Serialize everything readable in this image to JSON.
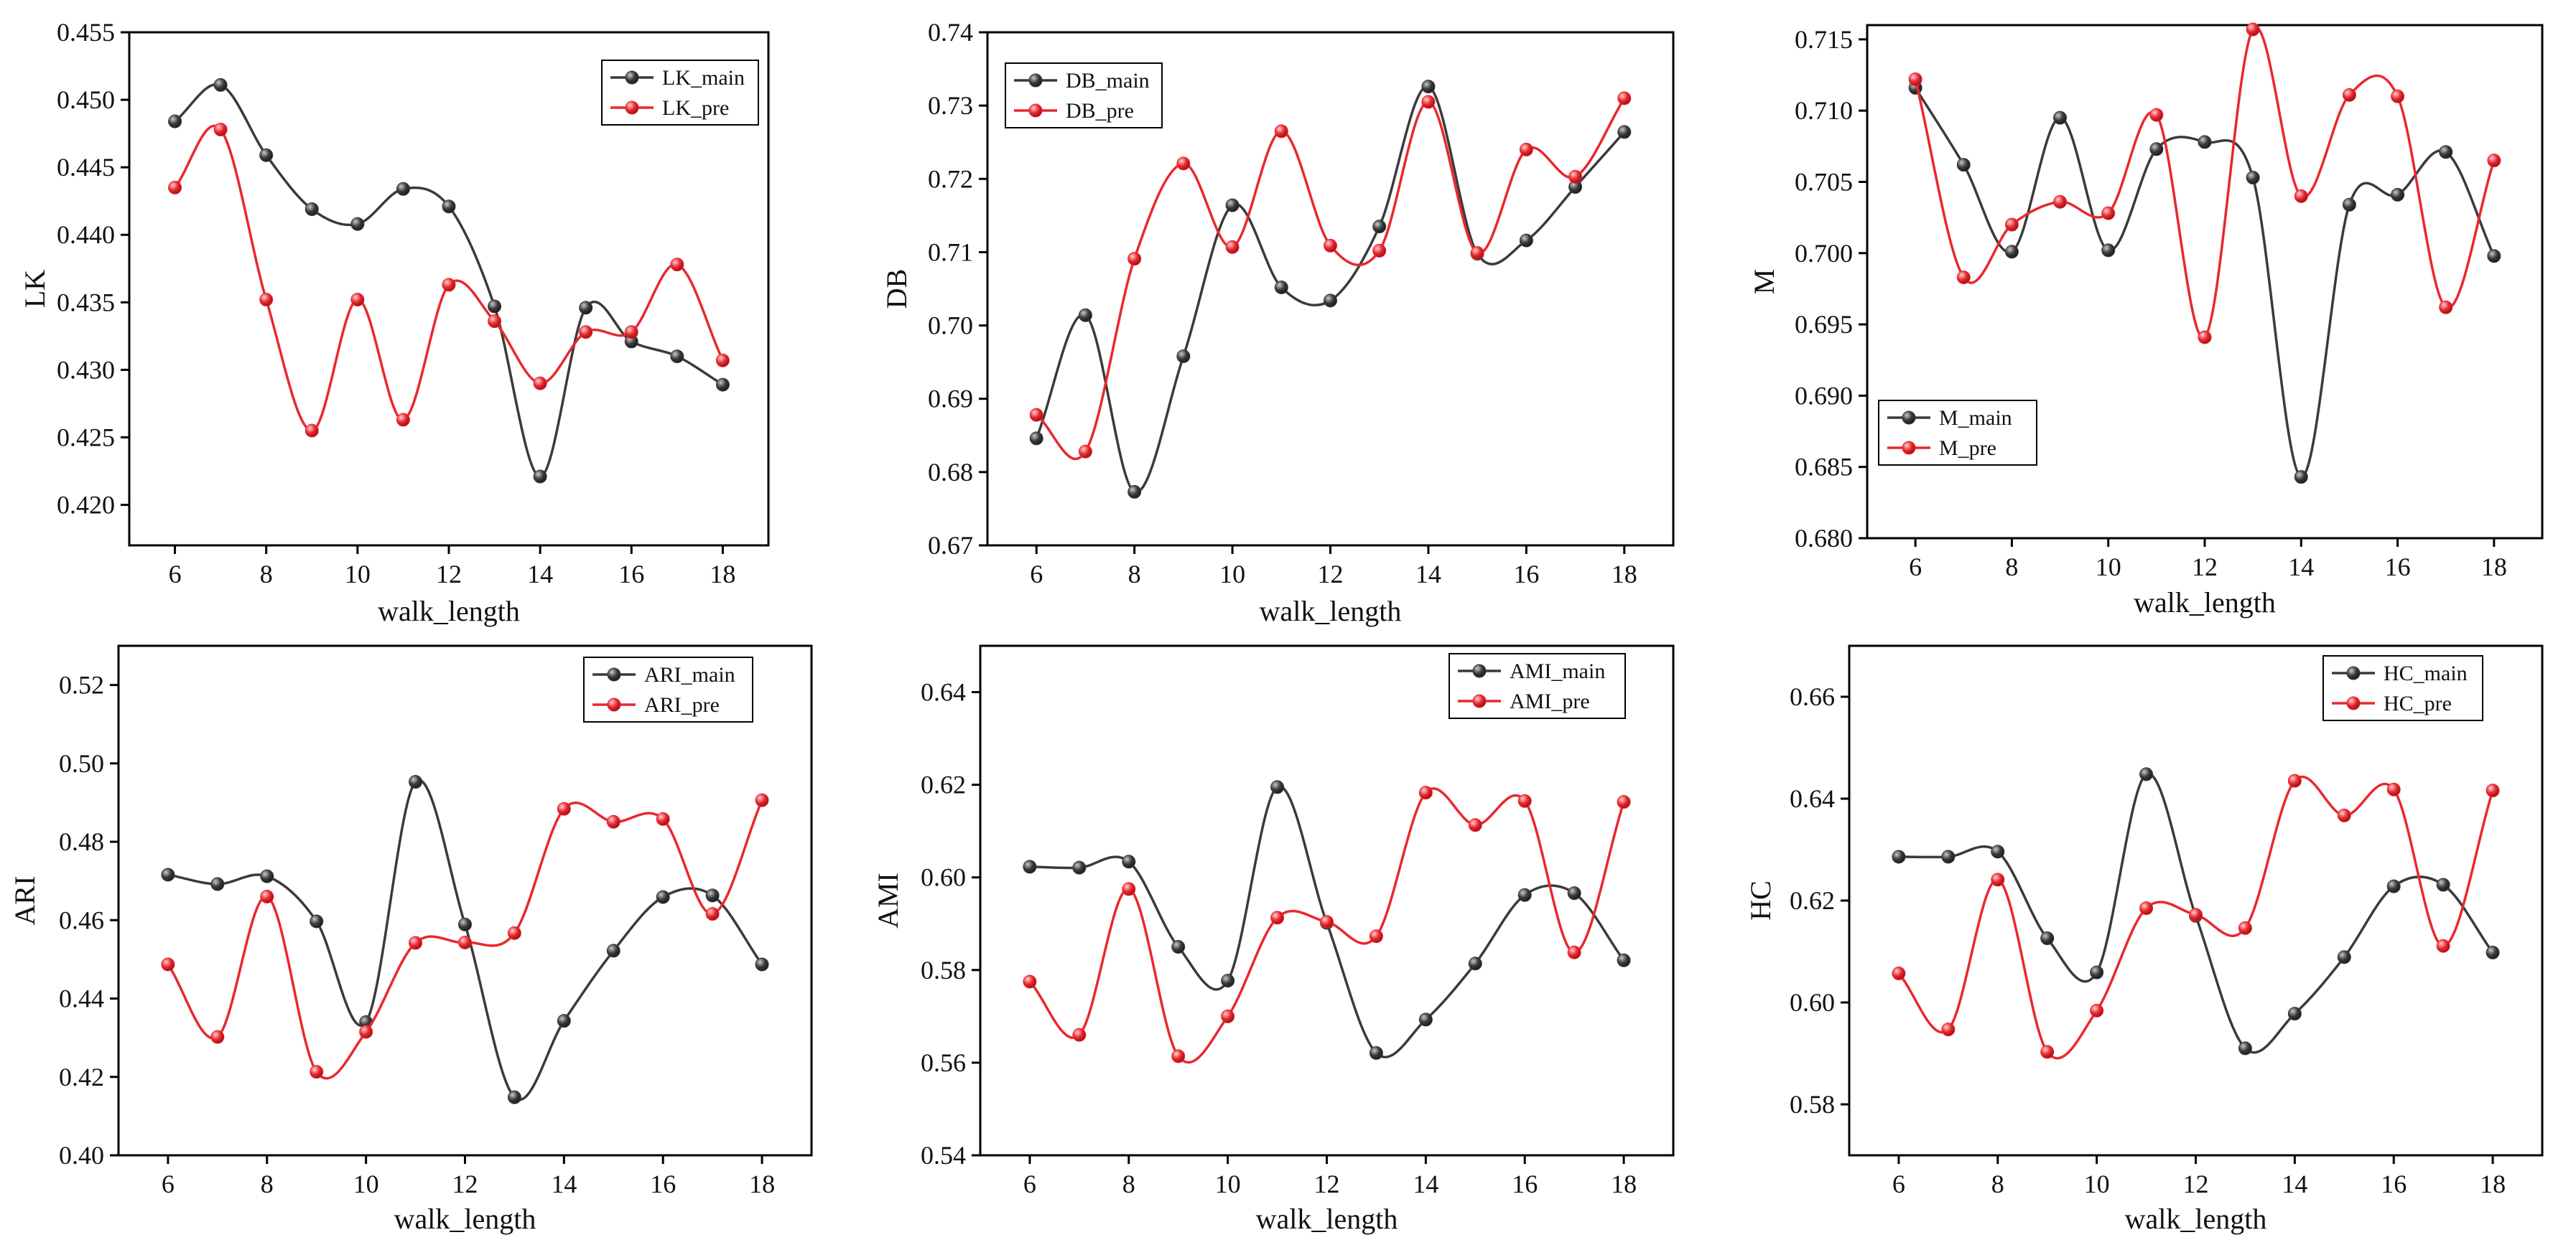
{
  "colors": {
    "main": "#3a3a3a",
    "pre": "#e8282e",
    "axis": "#000000"
  },
  "chart_data": [
    {
      "type": "line",
      "xlabel": "walk_length",
      "ylabel": "LK",
      "x": [
        6,
        7,
        8,
        9,
        10,
        11,
        12,
        13,
        14,
        15,
        16,
        17,
        18
      ],
      "xticks": [
        6,
        8,
        10,
        12,
        14,
        16,
        18
      ],
      "xlim": [
        5,
        19
      ],
      "ylim": [
        0.417,
        0.455
      ],
      "yticks": [
        "0.420",
        "0.425",
        "0.430",
        "0.435",
        "0.440",
        "0.445",
        "0.450",
        "0.455"
      ],
      "legend": "top-right",
      "series": [
        {
          "name": "LK_main",
          "values": [
            0.4484,
            0.4511,
            0.4459,
            0.4419,
            0.4408,
            0.4434,
            0.4421,
            0.4347,
            0.4221,
            0.4346,
            0.4321,
            0.431,
            0.4289
          ]
        },
        {
          "name": "LK_pre",
          "values": [
            0.4435,
            0.4478,
            0.4352,
            0.4255,
            0.4352,
            0.4263,
            0.4363,
            0.4336,
            0.429,
            0.4328,
            0.4328,
            0.4378,
            0.4307
          ]
        }
      ]
    },
    {
      "type": "line",
      "xlabel": "walk_length",
      "ylabel": "DB",
      "x": [
        6,
        7,
        8,
        9,
        10,
        11,
        12,
        13,
        14,
        15,
        16,
        17,
        18
      ],
      "xticks": [
        6,
        8,
        10,
        12,
        14,
        16,
        18
      ],
      "xlim": [
        5,
        19
      ],
      "ylim": [
        0.67,
        0.74
      ],
      "yticks": [
        "0.67",
        "0.68",
        "0.69",
        "0.70",
        "0.71",
        "0.72",
        "0.73",
        "0.74"
      ],
      "legend": "top-left",
      "series": [
        {
          "name": "DB_main",
          "values": [
            0.6846,
            0.7014,
            0.6773,
            0.6958,
            0.7164,
            0.7052,
            0.7034,
            0.7135,
            0.7326,
            0.7098,
            0.7116,
            0.7189,
            0.7264
          ]
        },
        {
          "name": "DB_pre",
          "values": [
            0.6878,
            0.6828,
            0.7091,
            0.7221,
            0.7107,
            0.7265,
            0.7109,
            0.7102,
            0.7305,
            0.7099,
            0.724,
            0.7203,
            0.731
          ]
        }
      ]
    },
    {
      "type": "line",
      "xlabel": "walk_length",
      "ylabel": "M",
      "x": [
        6,
        7,
        8,
        9,
        10,
        11,
        12,
        13,
        14,
        15,
        16,
        17,
        18
      ],
      "xticks": [
        6,
        8,
        10,
        12,
        14,
        16,
        18
      ],
      "xlim": [
        5,
        19
      ],
      "ylim": [
        0.68,
        0.716
      ],
      "yticks": [
        "0.680",
        "0.685",
        "0.690",
        "0.695",
        "0.700",
        "0.705",
        "0.710",
        "0.715"
      ],
      "legend": "bottom-left",
      "series": [
        {
          "name": "M_main",
          "values": [
            0.7116,
            0.7062,
            0.7001,
            0.7095,
            0.7002,
            0.7073,
            0.7078,
            0.7053,
            0.6843,
            0.7034,
            0.7041,
            0.7071,
            0.6998
          ]
        },
        {
          "name": "M_pre",
          "values": [
            0.7122,
            0.6983,
            0.702,
            0.7036,
            0.7028,
            0.7097,
            0.6941,
            0.7157,
            0.704,
            0.7111,
            0.711,
            0.6962,
            0.7065
          ]
        }
      ]
    },
    {
      "type": "line",
      "xlabel": "walk_length",
      "ylabel": "ARI",
      "x": [
        6,
        7,
        8,
        9,
        10,
        11,
        12,
        13,
        14,
        15,
        16,
        17,
        18
      ],
      "xticks": [
        6,
        8,
        10,
        12,
        14,
        16,
        18
      ],
      "xlim": [
        5,
        19
      ],
      "ylim": [
        0.4,
        0.53
      ],
      "yticks": [
        "0.40",
        "0.42",
        "0.44",
        "0.46",
        "0.48",
        "0.50",
        "0.52"
      ],
      "legend": "top-right",
      "series": [
        {
          "name": "ARI_main",
          "values": [
            0.4716,
            0.4692,
            0.4712,
            0.4597,
            0.434,
            0.4953,
            0.4589,
            0.4148,
            0.4343,
            0.4522,
            0.4659,
            0.4663,
            0.4487
          ]
        },
        {
          "name": "ARI_pre",
          "values": [
            0.4487,
            0.4302,
            0.466,
            0.4213,
            0.4315,
            0.4542,
            0.4543,
            0.4567,
            0.4884,
            0.4851,
            0.4858,
            0.4616,
            0.4906
          ]
        }
      ]
    },
    {
      "type": "line",
      "xlabel": "walk_length",
      "ylabel": "AMI",
      "x": [
        6,
        7,
        8,
        9,
        10,
        11,
        12,
        13,
        14,
        15,
        16,
        17,
        18
      ],
      "xticks": [
        6,
        8,
        10,
        12,
        14,
        16,
        18
      ],
      "xlim": [
        5,
        19
      ],
      "ylim": [
        0.54,
        0.65
      ],
      "yticks": [
        "0.54",
        "0.56",
        "0.58",
        "0.60",
        "0.62",
        "0.64"
      ],
      "legend": "top-right",
      "series": [
        {
          "name": "AMI_main",
          "values": [
            0.6023,
            0.6021,
            0.6034,
            0.585,
            0.5777,
            0.6195,
            0.5902,
            0.5621,
            0.5693,
            0.5814,
            0.5962,
            0.5966,
            0.5821
          ]
        },
        {
          "name": "AMI_pre",
          "values": [
            0.5775,
            0.566,
            0.5975,
            0.5614,
            0.57,
            0.5913,
            0.5904,
            0.5873,
            0.6183,
            0.6113,
            0.6165,
            0.5838,
            0.6163
          ]
        }
      ]
    },
    {
      "type": "line",
      "xlabel": "walk_length",
      "ylabel": "HC",
      "x": [
        6,
        7,
        8,
        9,
        10,
        11,
        12,
        13,
        14,
        15,
        16,
        17,
        18
      ],
      "xticks": [
        6,
        8,
        10,
        12,
        14,
        16,
        18
      ],
      "xlim": [
        5,
        19
      ],
      "ylim": [
        0.57,
        0.67
      ],
      "yticks": [
        "0.58",
        "0.60",
        "0.62",
        "0.64",
        "0.66"
      ],
      "legend": "top-right",
      "series": [
        {
          "name": "HC_main",
          "values": [
            0.6286,
            0.6286,
            0.6296,
            0.6126,
            0.6059,
            0.6448,
            0.617,
            0.591,
            0.5978,
            0.6089,
            0.6228,
            0.6231,
            0.6098
          ]
        },
        {
          "name": "HC_pre",
          "values": [
            0.6057,
            0.5947,
            0.6241,
            0.5903,
            0.5984,
            0.6185,
            0.6172,
            0.6146,
            0.6435,
            0.6367,
            0.6418,
            0.6111,
            0.6416
          ]
        }
      ]
    }
  ]
}
